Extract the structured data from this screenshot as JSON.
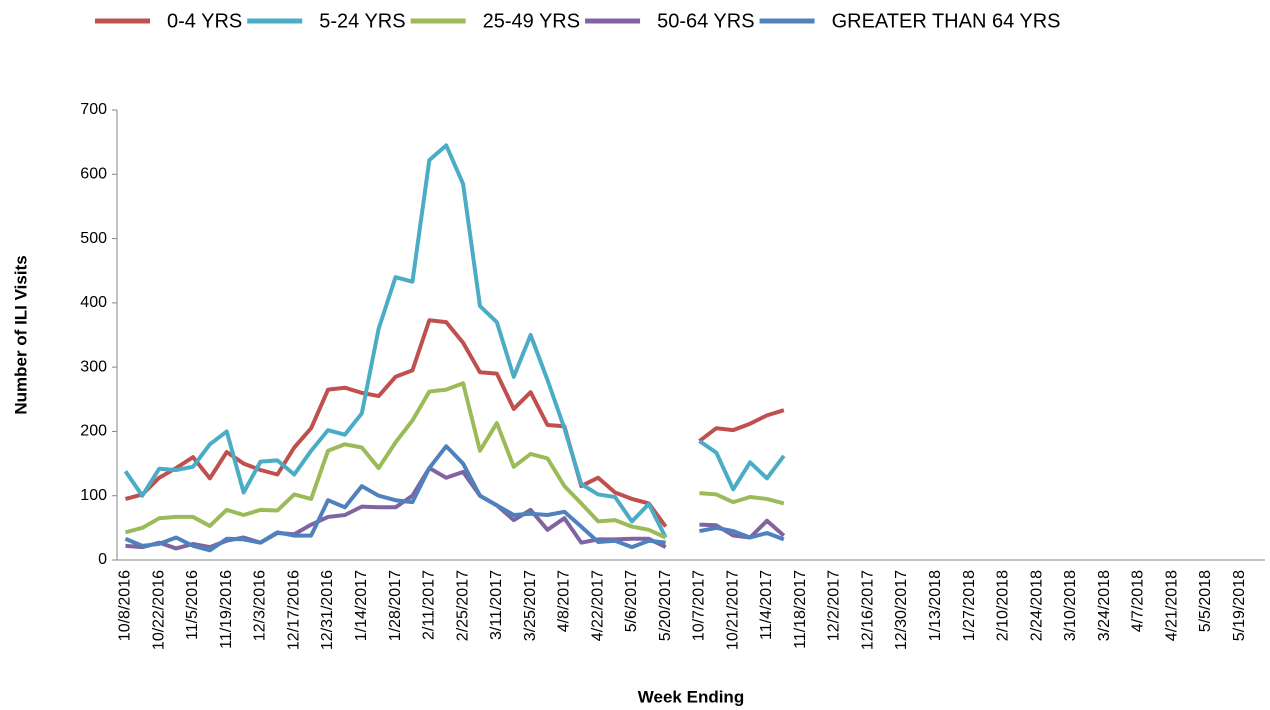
{
  "chart_data": {
    "type": "line",
    "y_label": "Number of ILI Visits",
    "x_label": "Week Ending",
    "categories": [
      "10/8/2016",
      null,
      "10/22/2016",
      null,
      "11/5/2016",
      null,
      "11/19/2016",
      null,
      "12/3/2016",
      null,
      "12/17/2016",
      null,
      "12/31/2016",
      null,
      "1/14/2017",
      null,
      "1/28/2017",
      null,
      "2/11/2017",
      null,
      "2/25/2017",
      null,
      "3/11/2017",
      null,
      "3/25/2017",
      null,
      "4/8/2017",
      null,
      "4/22/2017",
      null,
      "5/6/2017",
      null,
      "5/20/2017",
      null,
      "10/7/2017",
      null,
      "10/21/2017",
      null,
      "11/4/2017",
      null,
      "11/18/2017",
      null,
      "12/2/2017",
      null,
      "12/16/2017",
      null,
      "12/30/2017",
      null,
      "1/13/2018",
      null,
      "1/27/2018",
      null,
      "2/10/2018",
      null,
      "2/24/2018",
      null,
      "3/10/2018",
      null,
      "3/24/2018",
      null,
      "4/7/2018",
      null,
      "4/21/2018",
      null,
      "5/5/2018",
      null,
      "5/19/2018",
      null
    ],
    "series": [
      {
        "name": "0-4 YRS",
        "color": "#c0504d",
        "values": [
          95,
          102,
          128,
          143,
          160,
          127,
          168,
          150,
          140,
          133,
          175,
          205,
          265,
          268,
          260,
          255,
          285,
          295,
          373,
          370,
          338,
          292,
          290,
          235,
          261,
          210,
          208,
          115,
          128,
          105,
          95,
          88,
          52,
          null,
          185,
          205,
          202,
          212,
          225,
          233,
          null,
          null,
          null,
          null,
          null,
          null,
          null,
          null,
          null,
          null,
          null,
          null,
          null,
          null,
          null,
          null,
          null,
          null,
          null,
          null,
          null,
          null,
          null,
          null,
          null,
          null,
          null,
          null
        ]
      },
      {
        "name": "5-24 YRS",
        "color": "#4bacc6",
        "values": [
          138,
          100,
          142,
          140,
          145,
          180,
          200,
          105,
          153,
          155,
          133,
          170,
          202,
          195,
          228,
          360,
          440,
          433,
          622,
          645,
          585,
          395,
          370,
          285,
          350,
          280,
          205,
          118,
          102,
          98,
          60,
          87,
          35,
          null,
          185,
          167,
          110,
          152,
          127,
          162,
          null,
          null,
          null,
          null,
          null,
          null,
          null,
          null,
          null,
          null,
          null,
          null,
          null,
          null,
          null,
          null,
          null,
          null,
          null,
          null,
          null,
          null,
          null,
          null,
          null,
          null,
          null,
          null
        ]
      },
      {
        "name": "25-49 YRS",
        "color": "#9bbb59",
        "values": [
          43,
          50,
          65,
          67,
          67,
          53,
          78,
          70,
          78,
          77,
          102,
          95,
          170,
          180,
          175,
          143,
          183,
          217,
          262,
          265,
          275,
          170,
          213,
          145,
          165,
          158,
          115,
          88,
          60,
          62,
          52,
          47,
          35,
          null,
          104,
          102,
          90,
          98,
          95,
          88,
          null,
          null,
          null,
          null,
          null,
          null,
          null,
          null,
          null,
          null,
          null,
          null,
          null,
          null,
          null,
          null,
          null,
          null,
          null,
          null,
          null,
          null,
          null,
          null,
          null,
          null,
          null,
          null
        ]
      },
      {
        "name": "50-64 YRS",
        "color": "#8064a2",
        "values": [
          22,
          20,
          27,
          18,
          25,
          20,
          30,
          35,
          27,
          42,
          40,
          55,
          67,
          70,
          83,
          82,
          82,
          100,
          143,
          128,
          137,
          100,
          85,
          62,
          78,
          47,
          65,
          27,
          32,
          32,
          33,
          33,
          20,
          null,
          55,
          54,
          38,
          35,
          61,
          38,
          null,
          null,
          null,
          null,
          null,
          null,
          null,
          null,
          null,
          null,
          null,
          null,
          null,
          null,
          null,
          null,
          null,
          null,
          null,
          null,
          null,
          null,
          null,
          null,
          null,
          null,
          null,
          null
        ]
      },
      {
        "name": "GREATER THAN 64 YRS",
        "color": "#4f81bd",
        "values": [
          33,
          22,
          25,
          35,
          22,
          15,
          33,
          32,
          27,
          43,
          38,
          38,
          93,
          82,
          115,
          100,
          93,
          90,
          143,
          177,
          150,
          100,
          85,
          70,
          72,
          70,
          75,
          52,
          28,
          30,
          20,
          30,
          27,
          null,
          45,
          50,
          45,
          35,
          42,
          32,
          null,
          null,
          null,
          null,
          null,
          null,
          null,
          null,
          null,
          null,
          null,
          null,
          null,
          null,
          null,
          null,
          null,
          null,
          null,
          null,
          null,
          null,
          null,
          null,
          null,
          null,
          null,
          null
        ]
      }
    ],
    "ylim": [
      0,
      700
    ],
    "yticks": [
      0,
      100,
      200,
      300,
      400,
      500,
      600,
      700
    ],
    "grid": false,
    "legend": "top"
  }
}
